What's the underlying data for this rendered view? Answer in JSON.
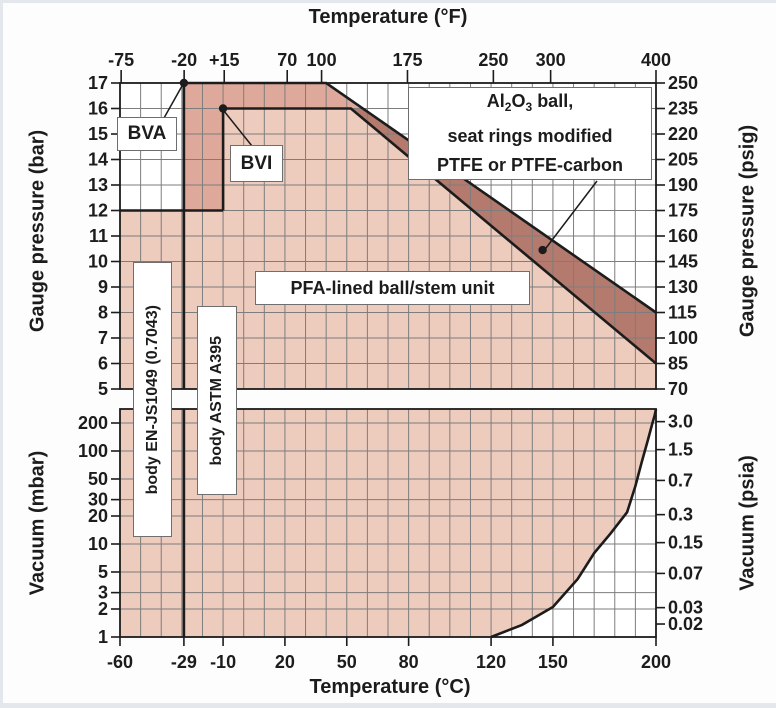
{
  "titles": {
    "top": "Temperature (°F)",
    "bottom": "Temperature (°C)",
    "left_upper": "Gauge pressure (bar)",
    "right_upper": "Gauge pressure (psig)",
    "left_lower": "Vacuum (mbar)",
    "right_lower": "Vacuum (psia)"
  },
  "annotations": {
    "bva": {
      "label": "BVA"
    },
    "bvi": {
      "label": "BVI"
    },
    "al2o3_box": {
      "l1a": "Al",
      "l1b": "2",
      "l1c": "O",
      "l1d": "3",
      "l1e": " ball,",
      "line2": "seat rings modified",
      "line3": "PTFE or PTFE-carbon"
    },
    "pfa_box": {
      "label": "PFA-lined ball/stem unit"
    },
    "body_en": {
      "label": "body EN-JS1049 (0.7043)"
    },
    "body_astm": {
      "label": "body ASTM A395"
    }
  },
  "colors": {
    "region_light": "#edccbe",
    "region_medium": "#dea99b",
    "region_dark": "#b47a6d",
    "grid": "#7d7d7d",
    "line": "#1c1c1c",
    "text": "#1c1c1c",
    "annotation_border": "#6e6e6e",
    "page_background": "#fdfdfe"
  },
  "chart_data": {
    "type": "area",
    "x_axis": {
      "unit_top": "°F",
      "unit_bottom": "°C",
      "range_c": [
        -60,
        200
      ],
      "ticks_c": [
        -60,
        -29,
        -10,
        20,
        50,
        80,
        120,
        150,
        200
      ],
      "tick_labels_c": [
        "-60",
        "-29",
        "-10",
        "20",
        "50",
        "80",
        "120",
        "150",
        "200"
      ],
      "ticks_f": [
        -75,
        -20,
        15,
        70,
        100,
        175,
        250,
        300,
        400
      ],
      "tick_labels_f": [
        "-75",
        "-20",
        "+15",
        "70",
        "100",
        "175",
        "250",
        "300",
        "400"
      ]
    },
    "upper_chart": {
      "y_left": {
        "label": "Gauge pressure (bar)",
        "scale": "linear",
        "range": [
          5,
          17
        ],
        "ticks": [
          17,
          16,
          15,
          14,
          13,
          12,
          11,
          10,
          9,
          8,
          7,
          6,
          5
        ]
      },
      "y_right": {
        "label": "Gauge pressure (psig)",
        "ticks": [
          250,
          235,
          220,
          205,
          190,
          175,
          160,
          145,
          130,
          115,
          100,
          85,
          70
        ]
      },
      "regions": {
        "pfa_standard": [
          [
            -60,
            12
          ],
          [
            -10,
            12
          ],
          [
            -10,
            16
          ],
          [
            52,
            16
          ],
          [
            200,
            6
          ],
          [
            200,
            5
          ],
          [
            -60,
            5
          ]
        ],
        "bva_extra": [
          [
            -29,
            12
          ],
          [
            -29,
            17
          ],
          [
            40,
            17
          ],
          [
            57.8,
            16
          ],
          [
            -10,
            16
          ],
          [
            -10,
            12
          ]
        ],
        "al2o3_band": [
          [
            57.8,
            16
          ],
          [
            200,
            8
          ],
          [
            200,
            6
          ],
          [
            52,
            16
          ]
        ]
      },
      "boundaries": {
        "limit_12bar": [
          [
            -60,
            12
          ],
          [
            -10,
            12
          ]
        ],
        "bva_limit": [
          [
            -29,
            12
          ],
          [
            -29,
            17
          ],
          [
            40,
            17
          ],
          [
            200,
            8
          ]
        ],
        "bvi_limit": [
          [
            -10,
            12
          ],
          [
            -10,
            16
          ],
          [
            52,
            16
          ],
          [
            200,
            6
          ]
        ],
        "body_line_c": -29
      },
      "dots": {
        "bva": [
          -29,
          17
        ],
        "bvi": [
          -10,
          16
        ],
        "al2o3": [
          145,
          10.45
        ]
      }
    },
    "lower_chart": {
      "y_left": {
        "label": "Vacuum (mbar)",
        "scale": "log",
        "range": [
          1,
          200
        ],
        "ticks": [
          200,
          100,
          50,
          30,
          20,
          10,
          5,
          3,
          2,
          1
        ],
        "tick_labels": [
          "200",
          "100",
          "50",
          "30",
          "20",
          "10",
          "5",
          "3",
          "2",
          "1"
        ]
      },
      "y_right": {
        "label": "Vacuum (psia)",
        "ticks": [
          3.0,
          1.5,
          0.7,
          0.3,
          0.15,
          0.07,
          0.03,
          0.02
        ],
        "tick_labels": [
          "3.0",
          "1.5",
          "0.7",
          "0.3",
          "0.15",
          "0.07",
          "0.03",
          "0.02"
        ]
      },
      "vacuum_boundary": [
        [
          120,
          1
        ],
        [
          135,
          1.35
        ],
        [
          150,
          2.1
        ],
        [
          162,
          4.2
        ],
        [
          170,
          8
        ],
        [
          178,
          13
        ],
        [
          186,
          22
        ],
        [
          190,
          42
        ],
        [
          193,
          75
        ],
        [
          196,
          130
        ],
        [
          198,
          190
        ],
        [
          199.3,
          240
        ],
        [
          200,
          290
        ]
      ],
      "body_line_c": -29
    }
  }
}
